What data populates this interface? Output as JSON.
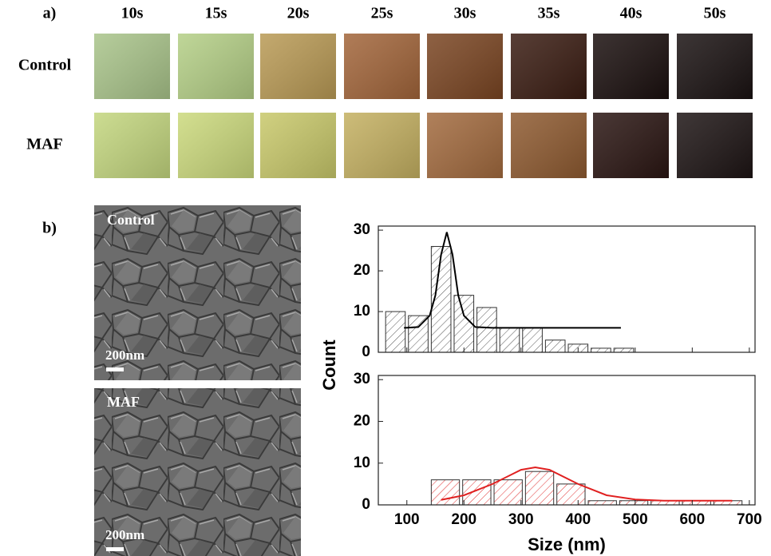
{
  "panel_a": {
    "label": "a)",
    "times": [
      "10s",
      "15s",
      "20s",
      "25s",
      "30s",
      "35s",
      "40s",
      "50s"
    ],
    "rows": [
      "Control",
      "MAF"
    ]
  },
  "panel_b": {
    "label": "b)",
    "images": [
      {
        "label": "Control",
        "scale": "200nm"
      },
      {
        "label": "MAF",
        "scale": "200nm"
      }
    ]
  },
  "chart_data": [
    {
      "type": "histogram",
      "ylabel": "Count",
      "bins": [
        60,
        100,
        140,
        180,
        220,
        260,
        300,
        340,
        380,
        420,
        460,
        500
      ],
      "values": [
        10,
        9,
        26,
        14,
        11,
        6,
        6,
        3,
        2,
        1,
        1
      ],
      "color": "#555555",
      "fit": {
        "x": [
          95,
          120,
          140,
          150,
          160,
          170,
          180,
          190,
          200,
          220,
          250,
          300,
          475
        ],
        "y": [
          6,
          6.2,
          9,
          14,
          24,
          29.5,
          24,
          14,
          9,
          6.2,
          6,
          6,
          6
        ],
        "color": "#000000"
      },
      "xlim": [
        50,
        710
      ],
      "ylim": [
        0,
        31
      ],
      "xticks": [
        100,
        200,
        300,
        400,
        500,
        600,
        700
      ],
      "yticks": [
        0,
        10,
        20,
        30
      ],
      "xtick_labels": false
    },
    {
      "type": "histogram",
      "xlabel": "Size (nm)",
      "bins": [
        140,
        195,
        250,
        305,
        360,
        415,
        470,
        525,
        580,
        635,
        690
      ],
      "values": [
        6,
        6,
        6,
        8,
        5,
        1,
        1,
        1,
        1,
        1
      ],
      "color": "#e03030",
      "fit": {
        "x": [
          160,
          200,
          250,
          300,
          325,
          350,
          400,
          450,
          500,
          550,
          670
        ],
        "y": [
          1.2,
          2.3,
          5,
          8.4,
          9,
          8.4,
          5,
          2.3,
          1.3,
          1,
          1
        ],
        "color": "#e02020"
      },
      "xlim": [
        50,
        710
      ],
      "ylim": [
        0,
        31
      ],
      "xticks": [
        100,
        200,
        300,
        400,
        500,
        600,
        700
      ],
      "yticks": [
        0,
        10,
        20,
        30
      ],
      "xtick_labels": true
    }
  ]
}
